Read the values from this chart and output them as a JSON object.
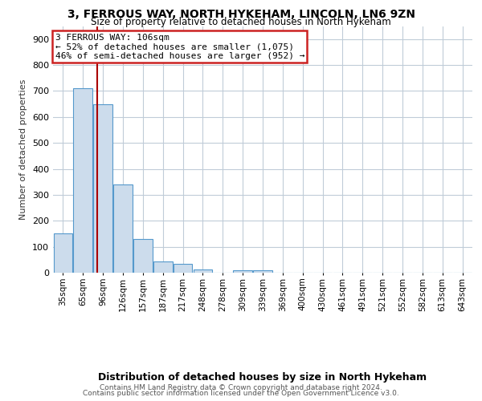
{
  "title1": "3, FERROUS WAY, NORTH HYKEHAM, LINCOLN, LN6 9ZN",
  "title2": "Size of property relative to detached houses in North Hykeham",
  "xlabel": "Distribution of detached houses by size in North Hykeham",
  "ylabel": "Number of detached properties",
  "footer1": "Contains HM Land Registry data © Crown copyright and database right 2024.",
  "footer2": "Contains public sector information licensed under the Open Government Licence v3.0.",
  "annotation_line1": "3 FERROUS WAY: 106sqm",
  "annotation_line2": "← 52% of detached houses are smaller (1,075)",
  "annotation_line3": "46% of semi-detached houses are larger (952) →",
  "bar_color": "#ccdcec",
  "bar_edge_color": "#5599cc",
  "vline_color": "#aa0000",
  "annotation_box_edgecolor": "#cc2222",
  "categories": [
    "35sqm",
    "65sqm",
    "96sqm",
    "126sqm",
    "157sqm",
    "187sqm",
    "217sqm",
    "248sqm",
    "278sqm",
    "309sqm",
    "339sqm",
    "369sqm",
    "400sqm",
    "430sqm",
    "461sqm",
    "491sqm",
    "521sqm",
    "552sqm",
    "582sqm",
    "613sqm",
    "643sqm"
  ],
  "values": [
    150,
    710,
    650,
    340,
    130,
    42,
    35,
    12,
    0,
    8,
    8,
    0,
    0,
    0,
    0,
    0,
    0,
    0,
    0,
    0,
    0
  ],
  "ylim": [
    0,
    950
  ],
  "yticks": [
    0,
    100,
    200,
    300,
    400,
    500,
    600,
    700,
    800,
    900
  ],
  "vline_pos": 1.72,
  "bg_color": "#ffffff",
  "grid_color": "#c0ccd8",
  "title1_fontsize": 10,
  "title2_fontsize": 8.5,
  "xlabel_fontsize": 9,
  "ylabel_fontsize": 8,
  "tick_fontsize": 7.5,
  "footer_fontsize": 6.5
}
